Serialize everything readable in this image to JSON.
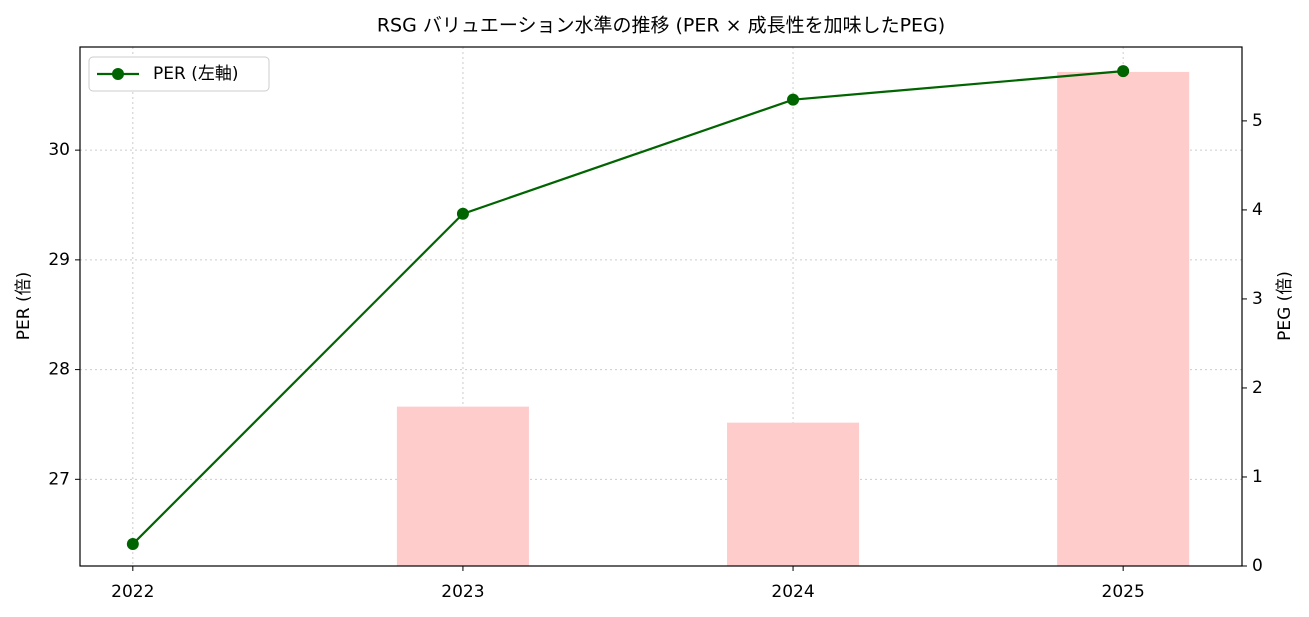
{
  "chart_data": {
    "type": "line",
    "title": "RSG バリュエーション水準の推移 (PER × 成長性を加味したPEG)",
    "y_label": "PER (倍)",
    "y2_label": "PEG (倍)",
    "x": [
      2022,
      2023,
      2024,
      2025
    ],
    "series": [
      {
        "name": "PER (左軸)",
        "type": "line",
        "color": "#006400",
        "values": [
          26.41,
          29.42,
          30.46,
          30.72
        ]
      },
      {
        "type": "bar",
        "axis": "y2",
        "color": "#ffcccc",
        "values": [
          null,
          1.79,
          1.61,
          5.55
        ]
      }
    ],
    "xlim": [
      2021.84,
      2025.36
    ],
    "xticks": [
      2022,
      2023,
      2024,
      2025
    ],
    "ylim": [
      26.21,
      30.94
    ],
    "yticks": [
      27,
      28,
      29,
      30
    ],
    "y2lim": [
      0,
      5.83
    ],
    "y2ticks": [
      0,
      1,
      2,
      3,
      4,
      5
    ],
    "grid": true,
    "legend": "upper left"
  }
}
